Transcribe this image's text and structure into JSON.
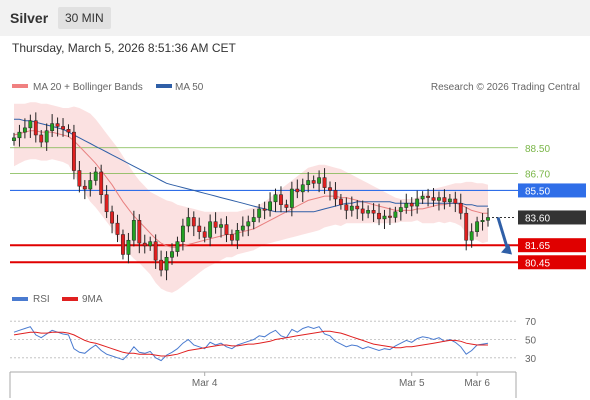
{
  "header": {
    "title": "Silver",
    "timeframe": "30 MIN"
  },
  "datetime": "Thursday, March 5, 2026 8:51:36 AM CET",
  "legend": {
    "items": [
      {
        "label": "MA 20 + Bollinger Bands",
        "color": "#f08080"
      },
      {
        "label": "MA 50",
        "color": "#2f5fa7"
      }
    ],
    "copyright": "Research © 2026 Trading Central"
  },
  "rsi_legend": {
    "items": [
      {
        "label": "RSI",
        "color": "#4a7bd0"
      },
      {
        "label": "9MA",
        "color": "#e02020"
      }
    ]
  },
  "colors": {
    "up": "#22a022",
    "down": "#e02020",
    "resistance": "#7ab648",
    "pivot": "#2f6ee8",
    "support": "#e00000",
    "last": "#333333"
  },
  "chart_data": [
    {
      "type": "candlestick",
      "ylim": [
        78.5,
        92.0
      ],
      "x_ticks": [
        "Mar 4",
        "Mar 5",
        "Mar 6"
      ],
      "levels": [
        {
          "value": 88.5,
          "label": "88.50",
          "kind": "resistance"
        },
        {
          "value": 86.7,
          "label": "86.70",
          "kind": "resistance"
        },
        {
          "value": 85.5,
          "label": "85.50",
          "kind": "pivot"
        },
        {
          "value": 83.6,
          "label": "83.60",
          "kind": "last"
        },
        {
          "value": 81.65,
          "label": "81.65",
          "kind": "support"
        },
        {
          "value": 80.45,
          "label": "80.45",
          "kind": "support"
        }
      ],
      "forecast": {
        "from": 83.6,
        "to": 81.0
      },
      "close": [
        89.2,
        89.6,
        89.9,
        90.4,
        89.4,
        88.9,
        89.7,
        90.2,
        90.0,
        89.8,
        89.6,
        86.9,
        85.8,
        85.6,
        86.2,
        86.8,
        85.2,
        84.0,
        83.2,
        82.4,
        81.0,
        82.0,
        83.4,
        81.8,
        81.6,
        81.9,
        80.6,
        79.9,
        80.8,
        81.2,
        81.9,
        83.0,
        83.6,
        83.0,
        82.6,
        82.2,
        83.3,
        82.9,
        83.1,
        82.4,
        82.0,
        82.7,
        83.0,
        83.3,
        83.6,
        84.2,
        84.1,
        84.7,
        85.2,
        84.5,
        84.3,
        85.6,
        85.4,
        85.9,
        86.2,
        86.0,
        86.4,
        85.7,
        85.5,
        84.9,
        84.5,
        84.1,
        84.4,
        84.2,
        83.9,
        84.1,
        83.9,
        83.5,
        83.7,
        83.6,
        84.0,
        84.3,
        84.6,
        84.4,
        84.9,
        85.1,
        85.0,
        84.8,
        85.0,
        84.7,
        84.9,
        84.6,
        83.9,
        82.0,
        82.6,
        83.3,
        83.4,
        83.6
      ],
      "ma20": [
        89.4,
        89.5,
        89.6,
        89.7,
        89.7,
        89.6,
        89.6,
        89.6,
        89.5,
        89.4,
        89.3,
        89.0,
        88.6,
        88.2,
        87.8,
        87.4,
        86.9,
        86.4,
        85.9,
        85.3,
        84.7,
        84.2,
        83.7,
        83.3,
        82.9,
        82.5,
        82.1,
        81.8,
        81.6,
        81.5,
        81.5,
        81.6,
        81.7,
        81.8,
        81.9,
        82.0,
        82.1,
        82.2,
        82.3,
        82.4,
        82.4,
        82.5,
        82.6,
        82.7,
        82.8,
        83.0,
        83.2,
        83.4,
        83.6,
        83.8,
        84.0,
        84.2,
        84.4,
        84.6,
        84.8,
        84.9,
        85.0,
        85.1,
        85.1,
        85.1,
        85.0,
        85.0,
        84.9,
        84.8,
        84.7,
        84.6,
        84.5,
        84.4,
        84.3,
        84.2,
        84.1,
        84.1,
        84.1,
        84.1,
        84.2,
        84.2,
        84.3,
        84.4,
        84.5,
        84.5,
        84.6,
        84.6,
        84.5,
        84.3,
        84.1,
        84.0,
        83.9,
        83.9
      ],
      "ma50": [
        90.5,
        90.5,
        90.4,
        90.4,
        90.3,
        90.2,
        90.1,
        90.0,
        89.9,
        89.8,
        89.6,
        89.4,
        89.2,
        89.0,
        88.8,
        88.6,
        88.4,
        88.2,
        88.0,
        87.8,
        87.6,
        87.4,
        87.2,
        87.0,
        86.8,
        86.6,
        86.4,
        86.2,
        86.0,
        85.9,
        85.8,
        85.7,
        85.6,
        85.5,
        85.4,
        85.3,
        85.2,
        85.1,
        85.0,
        84.9,
        84.8,
        84.7,
        84.6,
        84.5,
        84.4,
        84.3,
        84.2,
        84.1,
        84.0,
        84.0,
        84.0,
        84.0,
        84.0,
        84.0,
        84.0,
        84.0,
        84.1,
        84.2,
        84.3,
        84.4,
        84.5,
        84.6,
        84.6,
        84.7,
        84.7,
        84.7,
        84.7,
        84.7,
        84.7,
        84.7,
        84.6,
        84.6,
        84.6,
        84.6,
        84.6,
        84.6,
        84.6,
        84.6,
        84.6,
        84.6,
        84.6,
        84.6,
        84.6,
        84.5,
        84.5,
        84.4,
        84.4,
        84.4
      ],
      "bb_upper": [
        91.6,
        91.6,
        91.6,
        91.7,
        91.7,
        91.6,
        91.6,
        91.5,
        91.4,
        91.3,
        91.3,
        91.4,
        91.3,
        91.1,
        90.9,
        90.5,
        90.0,
        89.5,
        89.0,
        88.5,
        87.9,
        87.3,
        86.7,
        86.2,
        85.8,
        85.4,
        85.2,
        85.0,
        84.8,
        84.7,
        84.5,
        84.4,
        84.3,
        84.2,
        84.1,
        84.0,
        84.0,
        84.0,
        84.0,
        84.0,
        84.0,
        84.0,
        84.1,
        84.2,
        84.3,
        84.5,
        84.7,
        85.0,
        85.3,
        85.6,
        85.9,
        86.2,
        86.5,
        86.8,
        87.1,
        87.2,
        87.3,
        87.3,
        87.2,
        87.1,
        87.0,
        86.8,
        86.6,
        86.4,
        86.2,
        86.0,
        85.8,
        85.6,
        85.4,
        85.2,
        85.0,
        84.9,
        84.9,
        84.9,
        85.0,
        85.2,
        85.4,
        85.6,
        85.7,
        85.8,
        85.9,
        86.0,
        86.0,
        86.1,
        86.1,
        86.0,
        86.0,
        85.9
      ],
      "bb_lower": [
        87.2,
        87.4,
        87.6,
        87.7,
        87.7,
        87.6,
        87.6,
        87.7,
        87.6,
        87.5,
        87.3,
        86.6,
        85.9,
        85.3,
        84.7,
        84.3,
        83.8,
        83.3,
        82.8,
        82.1,
        81.5,
        81.1,
        80.7,
        80.4,
        80.0,
        79.6,
        79.0,
        78.6,
        78.4,
        78.3,
        78.5,
        78.8,
        79.1,
        79.4,
        79.7,
        80.0,
        80.2,
        80.4,
        80.6,
        80.8,
        80.8,
        81.0,
        81.1,
        81.2,
        81.3,
        81.5,
        81.7,
        81.8,
        81.9,
        82.0,
        82.1,
        82.2,
        82.3,
        82.4,
        82.5,
        82.6,
        82.7,
        82.9,
        83.0,
        83.1,
        83.0,
        83.2,
        83.2,
        83.2,
        83.2,
        83.2,
        83.2,
        83.2,
        83.2,
        83.2,
        83.2,
        83.3,
        83.3,
        83.3,
        83.4,
        83.2,
        83.2,
        83.2,
        83.3,
        83.2,
        83.3,
        83.2,
        83.0,
        82.5,
        82.1,
        82.0,
        81.8,
        81.9
      ]
    },
    {
      "type": "line",
      "name": "RSI",
      "yticks": [
        30,
        50,
        70
      ],
      "ylim": [
        20,
        80
      ],
      "rsi": [
        58,
        60,
        62,
        64,
        55,
        52,
        56,
        60,
        58,
        56,
        55,
        40,
        36,
        35,
        40,
        44,
        38,
        34,
        32,
        30,
        28,
        34,
        42,
        36,
        35,
        37,
        30,
        27,
        33,
        36,
        40,
        46,
        50,
        44,
        42,
        40,
        47,
        44,
        46,
        42,
        40,
        44,
        46,
        48,
        50,
        54,
        53,
        57,
        60,
        54,
        52,
        61,
        58,
        62,
        64,
        62,
        64,
        56,
        54,
        48,
        45,
        42,
        44,
        43,
        40,
        42,
        40,
        38,
        40,
        39,
        43,
        46,
        49,
        47,
        51,
        53,
        52,
        50,
        52,
        48,
        50,
        47,
        42,
        34,
        38,
        44,
        45,
        46
      ],
      "ma9": [
        55,
        56,
        57,
        58,
        58,
        57,
        57,
        58,
        58,
        58,
        57,
        55,
        52,
        49,
        47,
        46,
        44,
        42,
        40,
        38,
        36,
        35,
        35,
        34,
        34,
        34,
        33,
        32,
        32,
        33,
        34,
        36,
        38,
        39,
        40,
        41,
        42,
        43,
        44,
        44,
        43,
        43,
        44,
        45,
        45,
        46,
        47,
        48,
        50,
        51,
        52,
        53,
        54,
        55,
        56,
        57,
        58,
        59,
        59,
        58,
        57,
        55,
        53,
        51,
        49,
        47,
        45,
        44,
        43,
        42,
        41,
        41,
        42,
        42,
        43,
        44,
        45,
        46,
        47,
        48,
        49,
        49,
        48,
        46,
        45,
        44,
        44,
        44
      ]
    }
  ]
}
